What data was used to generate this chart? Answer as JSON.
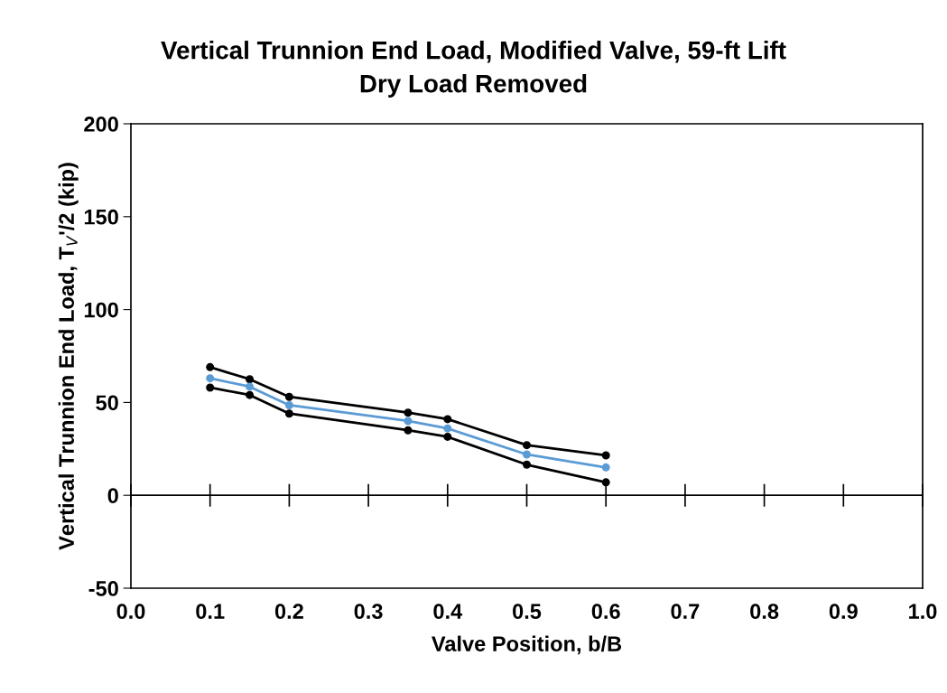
{
  "chart_data": {
    "type": "line",
    "title": "Vertical Trunnion End Load, Modified Valve, 59-ft Lift",
    "subtitle": "Dry Load Removed",
    "xlabel": "Valve Position, b/B",
    "ylabel": "Vertical Trunnion End Load, T$_{V}$'/2 (kip)",
    "x": [
      0.1,
      0.15,
      0.2,
      0.35,
      0.4,
      0.5,
      0.6
    ],
    "series": [
      {
        "color": "#000000",
        "values": [
          69,
          62.5,
          53,
          44.5,
          41,
          27,
          21.5
        ]
      },
      {
        "color": "#5b9bd5",
        "values": [
          63,
          58.5,
          48.5,
          40,
          36,
          22,
          15
        ]
      },
      {
        "color": "#000000",
        "values": [
          58,
          54,
          44,
          35,
          31.5,
          16.5,
          7
        ]
      }
    ],
    "xlim": [
      0,
      1
    ],
    "xticks": [
      {
        "value": 0,
        "label": "0.0"
      },
      0.1,
      0.2,
      0.3,
      0.4,
      0.5,
      0.6,
      0.7,
      0.8,
      0.9,
      {
        "value": 1,
        "label": "1.0"
      }
    ],
    "ylim": [
      -50,
      200
    ],
    "yticks": [
      -50,
      0,
      50,
      100,
      150,
      200
    ],
    "grid": false,
    "ref_lines": [
      {
        "axis": "y",
        "value": 0,
        "color": "#000000"
      }
    ],
    "legend": false,
    "marker": "circle",
    "line_style": "solid"
  }
}
